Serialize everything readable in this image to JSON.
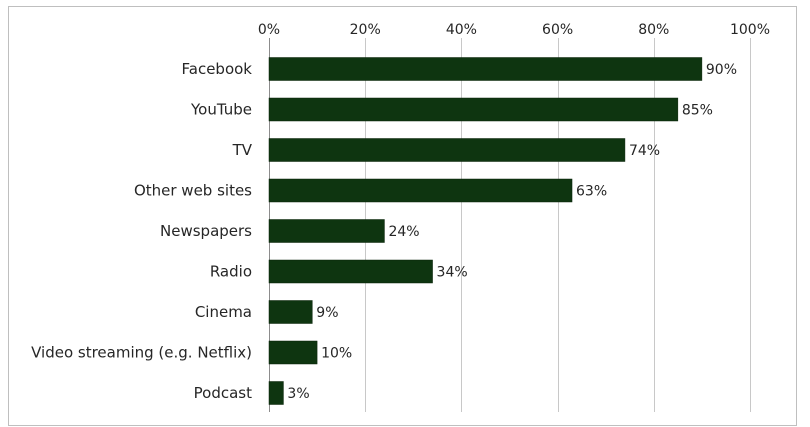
{
  "chart_data": {
    "type": "bar",
    "orientation": "horizontal",
    "categories": [
      "Facebook",
      "YouTube",
      "TV",
      "Other web sites",
      "Newspapers",
      "Radio",
      "Cinema",
      "Video streaming (e.g. Netflix)",
      "Podcast"
    ],
    "values": [
      90,
      85,
      74,
      63,
      24,
      34,
      9,
      10,
      3
    ],
    "value_labels": [
      "90%",
      "85%",
      "74%",
      "63%",
      "24%",
      "34%",
      "9%",
      "10%",
      "3%"
    ],
    "xlim": [
      0,
      100
    ],
    "x_ticks": [
      0,
      20,
      40,
      60,
      80,
      100
    ],
    "x_tick_labels": [
      "0%",
      "20%",
      "40%",
      "60%",
      "80%",
      "100%"
    ],
    "x_axis_position": "top",
    "grid": true,
    "bar_color": "#0e3510",
    "grid_color": "#c8c8c8",
    "text_color": "#262626",
    "title": "",
    "xlabel": "",
    "ylabel": ""
  }
}
